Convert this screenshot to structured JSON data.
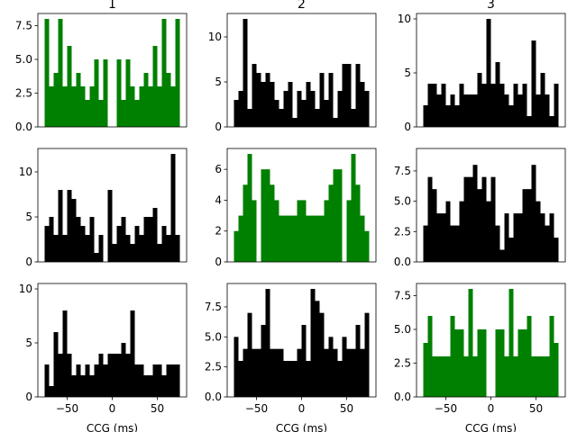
{
  "chart_data": [
    {
      "type": "histogram",
      "title": "1",
      "color": "#008000",
      "bins": [
        -75,
        -70,
        -65,
        -60,
        -55,
        -50,
        -45,
        -40,
        -35,
        -30,
        -25,
        -20,
        -15,
        -10,
        -5,
        0,
        5,
        10,
        15,
        20,
        25,
        30,
        35,
        40,
        45,
        50,
        55,
        60,
        65,
        70,
        75
      ],
      "values": [
        8,
        3,
        4,
        8,
        3,
        6,
        3,
        4,
        3,
        2,
        3,
        5,
        2,
        5,
        0,
        0,
        5,
        2,
        5,
        3,
        2,
        3,
        4,
        3,
        6,
        3,
        8,
        4,
        3,
        8
      ],
      "xlim": [
        -82.5,
        82.5
      ],
      "ylim": [
        0,
        8.4
      ],
      "yticks": [
        {
          "value": 0,
          "label": "0.0"
        },
        {
          "value": 2.5,
          "label": "2.5"
        },
        {
          "value": 5,
          "label": "5.0"
        },
        {
          "value": 7.5,
          "label": "7.5"
        }
      ]
    },
    {
      "type": "histogram",
      "title": "2",
      "color": "#000000",
      "bins": [
        -75,
        -70,
        -65,
        -60,
        -55,
        -50,
        -45,
        -40,
        -35,
        -30,
        -25,
        -20,
        -15,
        -10,
        -5,
        0,
        5,
        10,
        15,
        20,
        25,
        30,
        35,
        40,
        45,
        50,
        55,
        60,
        65,
        70,
        75
      ],
      "values": [
        3,
        4,
        12,
        2,
        7,
        6,
        5,
        6,
        5,
        3,
        2,
        4,
        5,
        1,
        4,
        3,
        5,
        4,
        2,
        6,
        3,
        6,
        1,
        4,
        7,
        7,
        2,
        7,
        5,
        4
      ],
      "xlim": [
        -82.5,
        82.5
      ],
      "ylim": [
        0,
        12.6
      ],
      "yticks": [
        0,
        5,
        10
      ]
    },
    {
      "type": "histogram",
      "title": "3",
      "color": "#000000",
      "bins": [
        -75,
        -70,
        -65,
        -60,
        -55,
        -50,
        -45,
        -40,
        -35,
        -30,
        -25,
        -20,
        -15,
        -10,
        -5,
        0,
        5,
        10,
        15,
        20,
        25,
        30,
        35,
        40,
        45,
        50,
        55,
        60,
        65,
        70,
        75
      ],
      "values": [
        2,
        4,
        4,
        3,
        4,
        2,
        3,
        2,
        4,
        3,
        3,
        3,
        5,
        4,
        10,
        4,
        6,
        4,
        3,
        2,
        4,
        3,
        4,
        1,
        8,
        3,
        5,
        3,
        1,
        4
      ],
      "xlim": [
        -82.5,
        82.5
      ],
      "ylim": [
        0,
        10.5
      ],
      "yticks": [
        0,
        5,
        10
      ]
    },
    {
      "type": "histogram",
      "color": "#000000",
      "bins": [
        -75,
        -70,
        -65,
        -60,
        -55,
        -50,
        -45,
        -40,
        -35,
        -30,
        -25,
        -20,
        -15,
        -10,
        -5,
        0,
        5,
        10,
        15,
        20,
        25,
        30,
        35,
        40,
        45,
        50,
        55,
        60,
        65,
        70,
        75
      ],
      "values": [
        4,
        5,
        3,
        8,
        3,
        8,
        7,
        5,
        4,
        3,
        5,
        1,
        3,
        0,
        8,
        2,
        4,
        5,
        3,
        2,
        4,
        3,
        5,
        5,
        6,
        2,
        4,
        3,
        12,
        3
      ],
      "xlim": [
        -82.5,
        82.5
      ],
      "ylim": [
        0,
        12.6
      ],
      "yticks": [
        0,
        5,
        10
      ]
    },
    {
      "type": "histogram",
      "color": "#008000",
      "bins": [
        -75,
        -70,
        -65,
        -60,
        -55,
        -50,
        -45,
        -40,
        -35,
        -30,
        -25,
        -20,
        -15,
        -10,
        -5,
        0,
        5,
        10,
        15,
        20,
        25,
        30,
        35,
        40,
        45,
        50,
        55,
        60,
        65,
        70,
        75
      ],
      "values": [
        2,
        3,
        5,
        7,
        4,
        0,
        6,
        6,
        5,
        4,
        3,
        3,
        3,
        3,
        4,
        4,
        3,
        3,
        3,
        3,
        4,
        5,
        6,
        6,
        0,
        4,
        7,
        5,
        3,
        2
      ],
      "xlim": [
        -82.5,
        82.5
      ],
      "ylim": [
        0,
        7.35
      ],
      "yticks": [
        0,
        2,
        4,
        6
      ]
    },
    {
      "type": "histogram",
      "color": "#000000",
      "bins": [
        -75,
        -70,
        -65,
        -60,
        -55,
        -50,
        -45,
        -40,
        -35,
        -30,
        -25,
        -20,
        -15,
        -10,
        -5,
        0,
        5,
        10,
        15,
        20,
        25,
        30,
        35,
        40,
        45,
        50,
        55,
        60,
        65,
        70,
        75
      ],
      "values": [
        3,
        7,
        6,
        4,
        4,
        5,
        3,
        3,
        5,
        7,
        7,
        8,
        6,
        7,
        5,
        7,
        3,
        1,
        4,
        2,
        4,
        4,
        6,
        6,
        8,
        5,
        4,
        3,
        4,
        2
      ],
      "xlim": [
        -82.5,
        82.5
      ],
      "ylim": [
        0,
        9.35
      ],
      "yticks": [
        {
          "value": 0,
          "label": "0.0"
        },
        {
          "value": 2.5,
          "label": "2.5"
        },
        {
          "value": 5,
          "label": "5.0"
        },
        {
          "value": 7.5,
          "label": "7.5"
        }
      ]
    },
    {
      "type": "histogram",
      "xlabel": "CCG (ms)",
      "color": "#000000",
      "bins": [
        -75,
        -70,
        -65,
        -60,
        -55,
        -50,
        -45,
        -40,
        -35,
        -30,
        -25,
        -20,
        -15,
        -10,
        -5,
        0,
        5,
        10,
        15,
        20,
        25,
        30,
        35,
        40,
        45,
        50,
        55,
        60,
        65,
        70,
        75
      ],
      "values": [
        3,
        1,
        6,
        4,
        8,
        4,
        2,
        3,
        2,
        3,
        2,
        3,
        4,
        3,
        4,
        4,
        4,
        5,
        4,
        8,
        3,
        3,
        2,
        2,
        3,
        3,
        2,
        3,
        3,
        3
      ],
      "xlim": [
        -82.5,
        82.5
      ],
      "ylim": [
        0,
        10.5
      ],
      "yticks": [
        0,
        5,
        10
      ],
      "xticks": [
        {
          "value": -50,
          "label": "−50"
        },
        0,
        50
      ]
    },
    {
      "type": "histogram",
      "xlabel": "CCG (ms)",
      "color": "#000000",
      "bins": [
        -75,
        -70,
        -65,
        -60,
        -55,
        -50,
        -45,
        -40,
        -35,
        -30,
        -25,
        -20,
        -15,
        -10,
        -5,
        0,
        5,
        10,
        15,
        20,
        25,
        30,
        35,
        40,
        45,
        50,
        55,
        60,
        65,
        70,
        75
      ],
      "values": [
        5,
        3,
        4,
        7,
        4,
        4,
        6,
        9,
        4,
        4,
        4,
        3,
        3,
        3,
        4,
        6,
        3,
        9,
        8,
        7,
        4,
        5,
        4,
        3,
        5,
        4,
        4,
        6,
        4,
        7
      ],
      "xlim": [
        -82.5,
        82.5
      ],
      "ylim": [
        0,
        9.45
      ],
      "yticks": [
        {
          "value": 0,
          "label": "0.0"
        },
        {
          "value": 2.5,
          "label": "2.5"
        },
        {
          "value": 5,
          "label": "5.0"
        },
        {
          "value": 7.5,
          "label": "7.5"
        }
      ],
      "xticks": [
        {
          "value": -50,
          "label": "−50"
        },
        0,
        50
      ]
    },
    {
      "type": "histogram",
      "xlabel": "CCG (ms)",
      "color": "#008000",
      "bins": [
        -75,
        -70,
        -65,
        -60,
        -55,
        -50,
        -45,
        -40,
        -35,
        -30,
        -25,
        -20,
        -15,
        -10,
        -5,
        0,
        5,
        10,
        15,
        20,
        25,
        30,
        35,
        40,
        45,
        50,
        55,
        60,
        65,
        70,
        75
      ],
      "values": [
        4,
        6,
        3,
        3,
        3,
        3,
        6,
        5,
        5,
        3,
        8,
        3,
        5,
        5,
        0,
        0,
        5,
        5,
        3,
        8,
        3,
        5,
        5,
        6,
        3,
        3,
        3,
        3,
        6,
        4
      ],
      "xlim": [
        -82.5,
        82.5
      ],
      "ylim": [
        0,
        8.4
      ],
      "yticks": [
        {
          "value": 0,
          "label": "0.0"
        },
        {
          "value": 2.5,
          "label": "2.5"
        },
        {
          "value": 5,
          "label": "5.0"
        },
        {
          "value": 7.5,
          "label": "7.5"
        }
      ],
      "xticks": [
        {
          "value": -50,
          "label": "−50"
        },
        0,
        50
      ]
    }
  ]
}
